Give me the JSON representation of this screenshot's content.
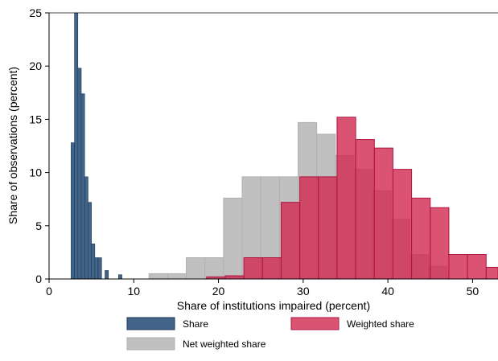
{
  "chart_data": {
    "type": "bar",
    "xlabel": "Share of institutions impaired (percent)",
    "ylabel": "Share of observations (percent)",
    "xlim": [
      0,
      53
    ],
    "ylim": [
      0,
      25
    ],
    "x_ticks": [
      0,
      10,
      20,
      30,
      40,
      50
    ],
    "y_ticks": [
      0,
      5,
      10,
      15,
      20,
      25
    ],
    "x_tick_labels": [
      "0",
      "10",
      "20",
      "30",
      "40",
      "50"
    ],
    "y_tick_labels": [
      "0",
      "5",
      "10",
      "15",
      "20",
      "25"
    ],
    "grid": false,
    "legend_position": "bottom",
    "series": [
      {
        "name": "Net weighted share",
        "color": "#c0c0c0",
        "edge": "#b0b0b0",
        "opacity": 1,
        "bins": [
          {
            "start": 11.8,
            "end": 14.0,
            "value": 0.5
          },
          {
            "start": 14.0,
            "end": 16.2,
            "value": 0.5
          },
          {
            "start": 16.2,
            "end": 18.4,
            "value": 2.0
          },
          {
            "start": 18.4,
            "end": 20.6,
            "value": 2.0
          },
          {
            "start": 20.6,
            "end": 22.8,
            "value": 7.6
          },
          {
            "start": 22.8,
            "end": 25.0,
            "value": 9.6
          },
          {
            "start": 25.0,
            "end": 27.2,
            "value": 9.6
          },
          {
            "start": 27.2,
            "end": 29.4,
            "value": 9.6
          },
          {
            "start": 29.4,
            "end": 31.6,
            "value": 14.7
          },
          {
            "start": 31.6,
            "end": 33.8,
            "value": 13.6
          },
          {
            "start": 33.8,
            "end": 36.0,
            "value": 11.6
          },
          {
            "start": 36.0,
            "end": 38.2,
            "value": 10.3
          },
          {
            "start": 38.2,
            "end": 40.4,
            "value": 8.3
          },
          {
            "start": 40.4,
            "end": 42.6,
            "value": 5.6
          },
          {
            "start": 42.6,
            "end": 44.8,
            "value": 2.3
          },
          {
            "start": 44.8,
            "end": 47.0,
            "value": 1.2
          }
        ]
      },
      {
        "name": "Weighted share",
        "color": "#d1284f",
        "edge": "#b01540",
        "opacity": 0.8,
        "bins": [
          {
            "start": 18.6,
            "end": 20.8,
            "value": 0.2
          },
          {
            "start": 20.8,
            "end": 23.0,
            "value": 0.3
          },
          {
            "start": 23.0,
            "end": 25.2,
            "value": 2.0
          },
          {
            "start": 25.2,
            "end": 27.4,
            "value": 2.0
          },
          {
            "start": 27.4,
            "end": 29.6,
            "value": 7.2
          },
          {
            "start": 29.6,
            "end": 31.8,
            "value": 9.6
          },
          {
            "start": 31.8,
            "end": 34.0,
            "value": 9.6
          },
          {
            "start": 34.0,
            "end": 36.2,
            "value": 15.2
          },
          {
            "start": 36.2,
            "end": 38.4,
            "value": 13.1
          },
          {
            "start": 38.4,
            "end": 40.6,
            "value": 12.3
          },
          {
            "start": 40.6,
            "end": 42.8,
            "value": 10.3
          },
          {
            "start": 42.8,
            "end": 45.0,
            "value": 7.6
          },
          {
            "start": 45.0,
            "end": 47.2,
            "value": 6.7
          },
          {
            "start": 47.2,
            "end": 49.4,
            "value": 2.3
          },
          {
            "start": 49.4,
            "end": 51.6,
            "value": 2.3
          },
          {
            "start": 51.6,
            "end": 53.8,
            "value": 1.1
          }
        ]
      },
      {
        "name": "Share",
        "color": "#416488",
        "edge": "#1f3a57",
        "opacity": 1,
        "bins": [
          {
            "start": 2.6,
            "end": 3.0,
            "value": 12.8
          },
          {
            "start": 3.0,
            "end": 3.4,
            "value": 25.0
          },
          {
            "start": 3.4,
            "end": 3.8,
            "value": 19.8
          },
          {
            "start": 3.8,
            "end": 4.2,
            "value": 17.4
          },
          {
            "start": 4.2,
            "end": 4.6,
            "value": 9.6
          },
          {
            "start": 4.6,
            "end": 5.0,
            "value": 7.2
          },
          {
            "start": 5.0,
            "end": 5.4,
            "value": 3.3
          },
          {
            "start": 5.4,
            "end": 5.8,
            "value": 2.0
          },
          {
            "start": 5.8,
            "end": 6.2,
            "value": 2.0
          },
          {
            "start": 6.6,
            "end": 7.0,
            "value": 0.8
          },
          {
            "start": 8.2,
            "end": 8.6,
            "value": 0.4
          }
        ]
      }
    ]
  },
  "legend": [
    {
      "label": "Share",
      "color": "#416488",
      "edge": "#1f3a57"
    },
    {
      "label": "Weighted share",
      "color": "#d1284f",
      "edge": "#b01540"
    },
    {
      "label": "Net weighted share",
      "color": "#c0c0c0",
      "edge": "#b0b0b0"
    }
  ]
}
